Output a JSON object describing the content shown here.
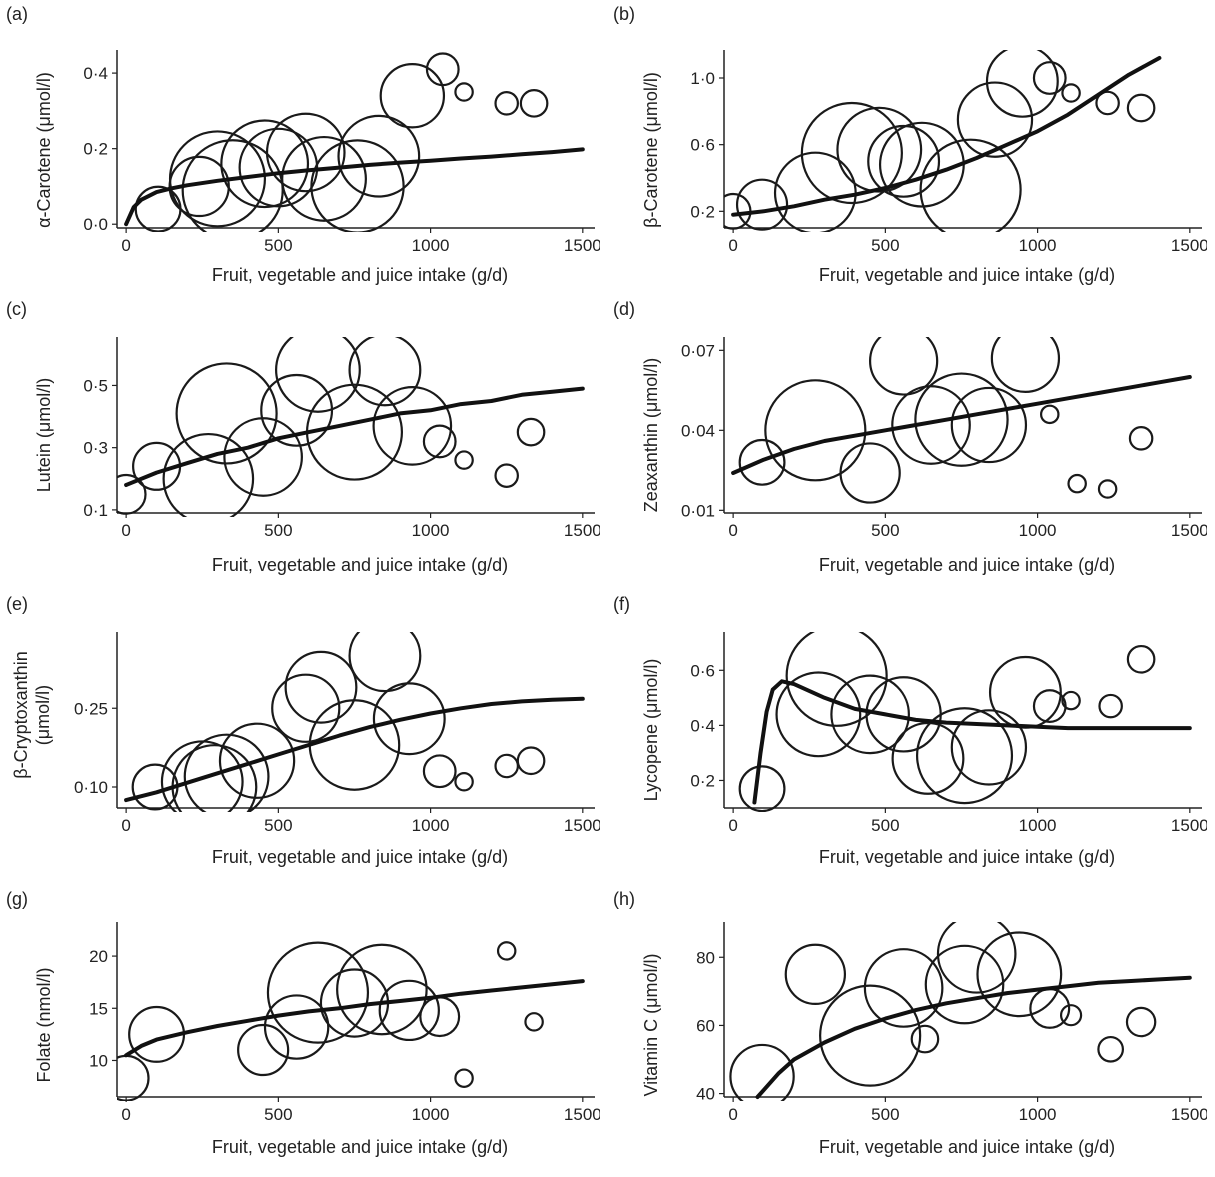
{
  "chart_data": [
    {
      "panel": "(a)",
      "type": "scatter",
      "ylabel": "α-Carotene (μmol/l)",
      "xlabel": "Fruit, vegetable and juice intake (g/d)",
      "xlim": [
        -30,
        1540
      ],
      "ylim": [
        -0.01,
        0.44
      ],
      "xticks": [
        0,
        500,
        1000,
        1500
      ],
      "xtick_labels": [
        "0",
        "500",
        "1000",
        "1500"
      ],
      "yticks": [
        0.0,
        0.2,
        0.4
      ],
      "ytick_labels": [
        "0·0",
        "0·2",
        "0·4"
      ],
      "points": [
        {
          "x": 105,
          "y": 0.04,
          "size": 0.2
        },
        {
          "x": 240,
          "y": 0.1,
          "size": 0.35
        },
        {
          "x": 300,
          "y": 0.12,
          "size": 0.9
        },
        {
          "x": 350,
          "y": 0.09,
          "size": 1.0
        },
        {
          "x": 455,
          "y": 0.16,
          "size": 0.75
        },
        {
          "x": 500,
          "y": 0.15,
          "size": 0.6
        },
        {
          "x": 590,
          "y": 0.19,
          "size": 0.6
        },
        {
          "x": 650,
          "y": 0.12,
          "size": 0.7
        },
        {
          "x": 760,
          "y": 0.1,
          "size": 0.85
        },
        {
          "x": 830,
          "y": 0.18,
          "size": 0.65
        },
        {
          "x": 940,
          "y": 0.34,
          "size": 0.4
        },
        {
          "x": 1040,
          "y": 0.41,
          "size": 0.1
        },
        {
          "x": 1110,
          "y": 0.35,
          "size": 0.03
        },
        {
          "x": 1250,
          "y": 0.32,
          "size": 0.05
        },
        {
          "x": 1340,
          "y": 0.32,
          "size": 0.07
        }
      ],
      "fit": {
        "x": [
          0,
          25,
          50,
          100,
          150,
          200,
          300,
          400,
          500,
          600,
          700,
          800,
          900,
          1000,
          1100,
          1200,
          1300,
          1400,
          1500
        ],
        "y": [
          0.0,
          0.045,
          0.065,
          0.085,
          0.095,
          0.103,
          0.115,
          0.125,
          0.135,
          0.143,
          0.15,
          0.157,
          0.163,
          0.168,
          0.174,
          0.179,
          0.185,
          0.191,
          0.198
        ]
      }
    },
    {
      "panel": "(b)",
      "type": "scatter",
      "ylabel": "β-Carotene (μmol/l)",
      "xlabel": "Fruit, vegetable and juice intake (g/d)",
      "xlim": [
        -30,
        1540
      ],
      "ylim": [
        0.1,
        1.12
      ],
      "xticks": [
        0,
        500,
        1000,
        1500
      ],
      "xtick_labels": [
        "0",
        "500",
        "1000",
        "1500"
      ],
      "yticks": [
        0.2,
        0.6,
        1.0
      ],
      "ytick_labels": [
        "0·2",
        "0·6",
        "1·0"
      ],
      "points": [
        {
          "x": 0,
          "y": 0.2,
          "size": 0.12
        },
        {
          "x": 95,
          "y": 0.24,
          "size": 0.25
        },
        {
          "x": 270,
          "y": 0.31,
          "size": 0.65
        },
        {
          "x": 390,
          "y": 0.55,
          "size": 1.0
        },
        {
          "x": 480,
          "y": 0.57,
          "size": 0.7
        },
        {
          "x": 560,
          "y": 0.5,
          "size": 0.5
        },
        {
          "x": 620,
          "y": 0.48,
          "size": 0.7
        },
        {
          "x": 780,
          "y": 0.33,
          "size": 1.0
        },
        {
          "x": 860,
          "y": 0.75,
          "size": 0.55
        },
        {
          "x": 950,
          "y": 0.98,
          "size": 0.5
        },
        {
          "x": 1040,
          "y": 1.0,
          "size": 0.1
        },
        {
          "x": 1110,
          "y": 0.91,
          "size": 0.03
        },
        {
          "x": 1230,
          "y": 0.85,
          "size": 0.05
        },
        {
          "x": 1340,
          "y": 0.82,
          "size": 0.07
        }
      ],
      "fit": {
        "x": [
          0,
          100,
          200,
          300,
          400,
          500,
          600,
          700,
          800,
          900,
          1000,
          1100,
          1200,
          1300,
          1400
        ],
        "y": [
          0.18,
          0.2,
          0.23,
          0.27,
          0.3,
          0.34,
          0.39,
          0.45,
          0.52,
          0.6,
          0.68,
          0.78,
          0.9,
          1.02,
          1.12
        ]
      }
    },
    {
      "panel": "(c)",
      "type": "scatter",
      "ylabel": "Lutein (μmol/l)",
      "xlabel": "Fruit, vegetable and juice intake (g/d)",
      "xlim": [
        -30,
        1540
      ],
      "ylim": [
        0.09,
        0.63
      ],
      "xticks": [
        0,
        500,
        1000,
        1500
      ],
      "xtick_labels": [
        "0",
        "500",
        "1000",
        "1500"
      ],
      "yticks": [
        0.1,
        0.3,
        0.5
      ],
      "ytick_labels": [
        "0·1",
        "0·3",
        "0·5"
      ],
      "points": [
        {
          "x": 0,
          "y": 0.15,
          "size": 0.15
        },
        {
          "x": 100,
          "y": 0.24,
          "size": 0.22
        },
        {
          "x": 270,
          "y": 0.2,
          "size": 0.8
        },
        {
          "x": 330,
          "y": 0.41,
          "size": 1.0
        },
        {
          "x": 450,
          "y": 0.27,
          "size": 0.6
        },
        {
          "x": 560,
          "y": 0.42,
          "size": 0.5
        },
        {
          "x": 630,
          "y": 0.55,
          "size": 0.7
        },
        {
          "x": 750,
          "y": 0.35,
          "size": 0.9
        },
        {
          "x": 850,
          "y": 0.55,
          "size": 0.5
        },
        {
          "x": 940,
          "y": 0.37,
          "size": 0.6
        },
        {
          "x": 1030,
          "y": 0.32,
          "size": 0.1
        },
        {
          "x": 1110,
          "y": 0.26,
          "size": 0.03
        },
        {
          "x": 1250,
          "y": 0.21,
          "size": 0.05
        },
        {
          "x": 1330,
          "y": 0.35,
          "size": 0.07
        }
      ],
      "fit": {
        "x": [
          0,
          100,
          200,
          300,
          400,
          500,
          600,
          700,
          800,
          900,
          1000,
          1100,
          1200,
          1300,
          1400,
          1500
        ],
        "y": [
          0.18,
          0.22,
          0.25,
          0.28,
          0.3,
          0.33,
          0.35,
          0.37,
          0.39,
          0.41,
          0.42,
          0.44,
          0.45,
          0.47,
          0.48,
          0.49
        ]
      }
    },
    {
      "panel": "(d)",
      "type": "scatter",
      "ylabel": "Zeaxanthin (μmol/l)",
      "xlabel": "Fruit, vegetable and juice intake (g/d)",
      "xlim": [
        -30,
        1540
      ],
      "ylim": [
        0.009,
        0.072
      ],
      "xticks": [
        0,
        500,
        1000,
        1500
      ],
      "xtick_labels": [
        "0",
        "500",
        "1000",
        "1500"
      ],
      "yticks": [
        0.01,
        0.04,
        0.07
      ],
      "ytick_labels": [
        "0·01",
        "0·04",
        "0·07"
      ],
      "points": [
        {
          "x": 95,
          "y": 0.028,
          "size": 0.2
        },
        {
          "x": 270,
          "y": 0.04,
          "size": 1.0
        },
        {
          "x": 450,
          "y": 0.024,
          "size": 0.35
        },
        {
          "x": 560,
          "y": 0.066,
          "size": 0.45
        },
        {
          "x": 650,
          "y": 0.042,
          "size": 0.6
        },
        {
          "x": 750,
          "y": 0.044,
          "size": 0.85
        },
        {
          "x": 840,
          "y": 0.042,
          "size": 0.55
        },
        {
          "x": 960,
          "y": 0.067,
          "size": 0.45
        },
        {
          "x": 1040,
          "y": 0.046,
          "size": 0.03
        },
        {
          "x": 1130,
          "y": 0.02,
          "size": 0.03
        },
        {
          "x": 1230,
          "y": 0.018,
          "size": 0.03
        },
        {
          "x": 1340,
          "y": 0.037,
          "size": 0.05
        }
      ],
      "fit": {
        "x": [
          0,
          100,
          200,
          300,
          400,
          500,
          600,
          700,
          800,
          900,
          1000,
          1100,
          1200,
          1300,
          1400,
          1500
        ],
        "y": [
          0.024,
          0.029,
          0.033,
          0.036,
          0.038,
          0.04,
          0.042,
          0.044,
          0.046,
          0.048,
          0.05,
          0.052,
          0.054,
          0.056,
          0.058,
          0.06
        ]
      }
    },
    {
      "panel": "(e)",
      "type": "scatter",
      "ylabel": "β-Cryptoxanthin (μmol/l)",
      "xlabel": "Fruit, vegetable and juice intake (g/d)",
      "xlim": [
        -30,
        1540
      ],
      "ylim": [
        0.06,
        0.38
      ],
      "xticks": [
        0,
        500,
        1000,
        1500
      ],
      "xtick_labels": [
        "0",
        "500",
        "1000",
        "1500"
      ],
      "yticks": [
        0.1,
        0.25
      ],
      "ytick_labels": [
        "0·10",
        "0·25"
      ],
      "points": [
        {
          "x": 95,
          "y": 0.1,
          "size": 0.2
        },
        {
          "x": 250,
          "y": 0.11,
          "size": 0.65
        },
        {
          "x": 290,
          "y": 0.1,
          "size": 0.7
        },
        {
          "x": 330,
          "y": 0.12,
          "size": 0.7
        },
        {
          "x": 430,
          "y": 0.15,
          "size": 0.55
        },
        {
          "x": 590,
          "y": 0.25,
          "size": 0.45
        },
        {
          "x": 640,
          "y": 0.29,
          "size": 0.5
        },
        {
          "x": 750,
          "y": 0.18,
          "size": 0.8
        },
        {
          "x": 850,
          "y": 0.35,
          "size": 0.5
        },
        {
          "x": 930,
          "y": 0.23,
          "size": 0.5
        },
        {
          "x": 1030,
          "y": 0.13,
          "size": 0.1
        },
        {
          "x": 1110,
          "y": 0.11,
          "size": 0.03
        },
        {
          "x": 1250,
          "y": 0.14,
          "size": 0.05
        },
        {
          "x": 1330,
          "y": 0.15,
          "size": 0.07
        }
      ],
      "fit": {
        "x": [
          0,
          100,
          200,
          300,
          400,
          500,
          600,
          700,
          800,
          900,
          1000,
          1100,
          1200,
          1300,
          1400,
          1500
        ],
        "y": [
          0.075,
          0.09,
          0.108,
          0.126,
          0.144,
          0.162,
          0.18,
          0.198,
          0.214,
          0.228,
          0.24,
          0.25,
          0.258,
          0.263,
          0.266,
          0.268
        ]
      }
    },
    {
      "panel": "(f)",
      "type": "scatter",
      "ylabel": "Lycopene (μmol/l)",
      "xlabel": "Fruit, vegetable and juice intake (g/d)",
      "xlim": [
        -30,
        1540
      ],
      "ylim": [
        0.1,
        0.71
      ],
      "xticks": [
        0,
        500,
        1000,
        1500
      ],
      "xtick_labels": [
        "0",
        "500",
        "1000",
        "1500"
      ],
      "yticks": [
        0.2,
        0.4,
        0.6
      ],
      "ytick_labels": [
        "0·2",
        "0·4",
        "0·6"
      ],
      "points": [
        {
          "x": 95,
          "y": 0.17,
          "size": 0.2
        },
        {
          "x": 280,
          "y": 0.44,
          "size": 0.7
        },
        {
          "x": 340,
          "y": 0.58,
          "size": 1.0
        },
        {
          "x": 450,
          "y": 0.44,
          "size": 0.6
        },
        {
          "x": 560,
          "y": 0.44,
          "size": 0.55
        },
        {
          "x": 640,
          "y": 0.28,
          "size": 0.5
        },
        {
          "x": 760,
          "y": 0.29,
          "size": 0.9
        },
        {
          "x": 840,
          "y": 0.32,
          "size": 0.55
        },
        {
          "x": 960,
          "y": 0.52,
          "size": 0.5
        },
        {
          "x": 1040,
          "y": 0.47,
          "size": 0.1
        },
        {
          "x": 1110,
          "y": 0.49,
          "size": 0.03
        },
        {
          "x": 1240,
          "y": 0.47,
          "size": 0.05
        },
        {
          "x": 1340,
          "y": 0.64,
          "size": 0.07
        }
      ],
      "fit": {
        "x": [
          70,
          90,
          110,
          130,
          160,
          200,
          300,
          400,
          500,
          600,
          700,
          800,
          900,
          1000,
          1100,
          1200,
          1300,
          1400,
          1500
        ],
        "y": [
          0.12,
          0.3,
          0.45,
          0.53,
          0.56,
          0.55,
          0.5,
          0.46,
          0.44,
          0.42,
          0.41,
          0.405,
          0.4,
          0.395,
          0.39,
          0.39,
          0.39,
          0.39,
          0.39
        ]
      }
    },
    {
      "panel": "(g)",
      "type": "scatter",
      "ylabel": "Folate (nmol/l)",
      "xlabel": "Fruit, vegetable and juice intake (g/d)",
      "xlim": [
        -30,
        1540
      ],
      "ylim": [
        6.5,
        22.5
      ],
      "xticks": [
        0,
        500,
        1000,
        1500
      ],
      "xtick_labels": [
        "0",
        "500",
        "1000",
        "1500"
      ],
      "yticks": [
        10,
        15,
        20
      ],
      "ytick_labels": [
        "10",
        "15",
        "20"
      ],
      "points": [
        {
          "x": 0,
          "y": 8.3,
          "size": 0.2
        },
        {
          "x": 100,
          "y": 12.5,
          "size": 0.3
        },
        {
          "x": 450,
          "y": 11.0,
          "size": 0.25
        },
        {
          "x": 560,
          "y": 13.2,
          "size": 0.4
        },
        {
          "x": 630,
          "y": 16.5,
          "size": 1.0
        },
        {
          "x": 750,
          "y": 15.5,
          "size": 0.45
        },
        {
          "x": 840,
          "y": 16.8,
          "size": 0.8
        },
        {
          "x": 930,
          "y": 14.8,
          "size": 0.35
        },
        {
          "x": 1030,
          "y": 14.2,
          "size": 0.15
        },
        {
          "x": 1110,
          "y": 8.3,
          "size": 0.03
        },
        {
          "x": 1250,
          "y": 20.5,
          "size": 0.03
        },
        {
          "x": 1340,
          "y": 13.7,
          "size": 0.03
        }
      ],
      "fit": {
        "x": [
          0,
          50,
          100,
          200,
          300,
          400,
          500,
          600,
          700,
          800,
          900,
          1000,
          1100,
          1200,
          1300,
          1400,
          1500
        ],
        "y": [
          10.5,
          11.4,
          12.0,
          12.7,
          13.3,
          13.8,
          14.3,
          14.7,
          15.0,
          15.4,
          15.7,
          16.0,
          16.4,
          16.7,
          17.0,
          17.3,
          17.6
        ]
      }
    },
    {
      "panel": "(h)",
      "type": "scatter",
      "ylabel": "Vitamin C (μmol/l)",
      "xlabel": "Fruit, vegetable and juice intake (g/d)",
      "xlim": [
        -30,
        1540
      ],
      "ylim": [
        39,
        88
      ],
      "xticks": [
        0,
        500,
        1000,
        1500
      ],
      "xtick_labels": [
        "0",
        "500",
        "1000",
        "1500"
      ],
      "yticks": [
        40,
        60,
        80
      ],
      "ytick_labels": [
        "40",
        "60",
        "80"
      ],
      "points": [
        {
          "x": 95,
          "y": 45,
          "size": 0.4
        },
        {
          "x": 270,
          "y": 75,
          "size": 0.35
        },
        {
          "x": 450,
          "y": 57,
          "size": 1.0
        },
        {
          "x": 560,
          "y": 71,
          "size": 0.6
        },
        {
          "x": 630,
          "y": 56,
          "size": 0.07
        },
        {
          "x": 760,
          "y": 72,
          "size": 0.6
        },
        {
          "x": 800,
          "y": 81,
          "size": 0.6
        },
        {
          "x": 940,
          "y": 75,
          "size": 0.7
        },
        {
          "x": 1040,
          "y": 65,
          "size": 0.15
        },
        {
          "x": 1110,
          "y": 63,
          "size": 0.04
        },
        {
          "x": 1240,
          "y": 53,
          "size": 0.06
        },
        {
          "x": 1340,
          "y": 61,
          "size": 0.08
        }
      ],
      "fit": {
        "x": [
          80,
          100,
          150,
          200,
          300,
          400,
          500,
          600,
          700,
          800,
          900,
          1000,
          1100,
          1200,
          1300,
          1400,
          1500
        ],
        "y": [
          39,
          41,
          46,
          50,
          55,
          59,
          62,
          64.5,
          66.5,
          68,
          69.5,
          70.5,
          71.5,
          72.5,
          73,
          73.5,
          74
        ]
      }
    }
  ]
}
